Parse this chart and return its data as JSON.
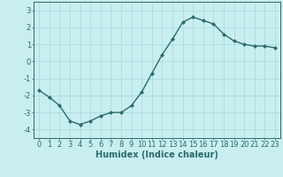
{
  "x": [
    0,
    1,
    2,
    3,
    4,
    5,
    6,
    7,
    8,
    9,
    10,
    11,
    12,
    13,
    14,
    15,
    16,
    17,
    18,
    19,
    20,
    21,
    22,
    23
  ],
  "y": [
    -1.7,
    -2.1,
    -2.6,
    -3.5,
    -3.7,
    -3.5,
    -3.2,
    -3.0,
    -3.0,
    -2.6,
    -1.8,
    -0.7,
    0.4,
    1.3,
    2.3,
    2.6,
    2.4,
    2.2,
    1.6,
    1.2,
    1.0,
    0.9,
    0.9,
    0.8
  ],
  "line_color": "#2d6b6b",
  "marker": "D",
  "marker_size": 2.0,
  "xlabel": "Humidex (Indice chaleur)",
  "xlim": [
    -0.5,
    23.5
  ],
  "ylim": [
    -4.5,
    3.5
  ],
  "yticks": [
    -4,
    -3,
    -2,
    -1,
    0,
    1,
    2,
    3
  ],
  "xticks": [
    0,
    1,
    2,
    3,
    4,
    5,
    6,
    7,
    8,
    9,
    10,
    11,
    12,
    13,
    14,
    15,
    16,
    17,
    18,
    19,
    20,
    21,
    22,
    23
  ],
  "bg_color": "#c8eef0",
  "grid_color": "#aadde0",
  "axis_color": "#2d6b6b",
  "xlabel_fontsize": 7,
  "tick_fontsize": 6,
  "linewidth": 1.0
}
